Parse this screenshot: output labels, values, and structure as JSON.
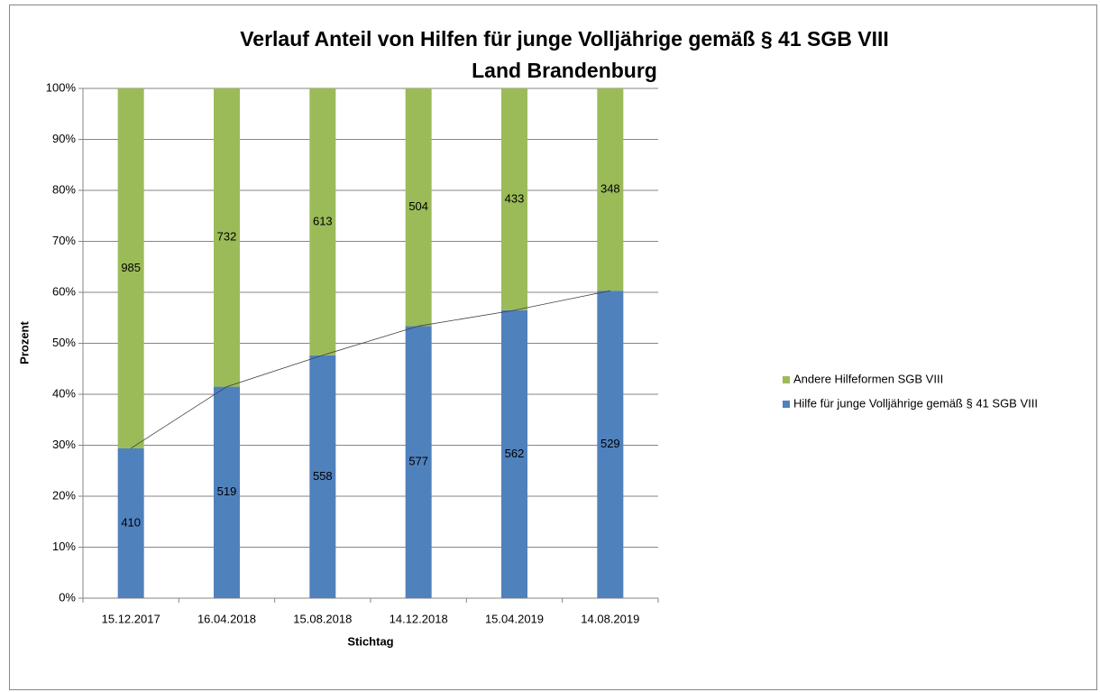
{
  "chart_data": {
    "type": "bar",
    "stacking": "percent",
    "title": [
      "Verlauf Anteil von Hilfen für junge Volljährige gemäß § 41 SGB VIII",
      "Land Brandenburg"
    ],
    "x_label": "Stichtag",
    "y_label": "Prozent",
    "categories": [
      "15.12.2017",
      "16.04.2018",
      "15.08.2018",
      "14.12.2018",
      "15.04.2019",
      "14.08.2019"
    ],
    "series": [
      {
        "name": "Hilfe für junge Volljährige gemäß § 41 SGB VIII",
        "color": "#4f81bd",
        "values": [
          410,
          519,
          558,
          577,
          562,
          529
        ]
      },
      {
        "name": "Andere Hilfeformen SGB VIII",
        "color": "#9bbb59",
        "values": [
          985,
          732,
          613,
          504,
          433,
          348
        ]
      }
    ],
    "ylim": [
      0,
      100
    ],
    "yticks": [
      {
        "value": 0,
        "label": "0%"
      },
      {
        "value": 10,
        "label": "10%"
      },
      {
        "value": 20,
        "label": "20%"
      },
      {
        "value": 30,
        "label": "30%"
      },
      {
        "value": 40,
        "label": "40%"
      },
      {
        "value": 50,
        "label": "50%"
      },
      {
        "value": 60,
        "label": "60%"
      },
      {
        "value": 70,
        "label": "70%"
      },
      {
        "value": 80,
        "label": "80%"
      },
      {
        "value": 90,
        "label": "90%"
      },
      {
        "value": 100,
        "label": "100%"
      }
    ],
    "grid": true,
    "legend": "right"
  }
}
